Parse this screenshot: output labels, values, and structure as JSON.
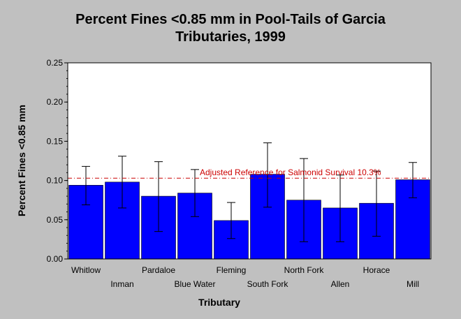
{
  "chart_data": {
    "type": "bar",
    "title_lines": [
      "Percent Fines <0.85 mm in Pool-Tails of Garcia",
      "Tributaries, 1999"
    ],
    "xlabel": "Tributary",
    "ylabel": "Percent Fines <0.85 mm",
    "ylim": [
      0,
      0.25
    ],
    "yticks": [
      "0.00",
      "0.05",
      "0.10",
      "0.15",
      "0.20",
      "0.25"
    ],
    "categories": [
      "Whitlow",
      "Inman",
      "Pardaloe",
      "Blue Water",
      "Fleming",
      "South Fork",
      "North Fork",
      "Allen",
      "Horace",
      "Mill"
    ],
    "values": [
      0.094,
      0.098,
      0.08,
      0.084,
      0.049,
      0.108,
      0.075,
      0.065,
      0.071,
      0.101
    ],
    "error_low": [
      0.069,
      0.065,
      0.035,
      0.054,
      0.026,
      0.066,
      0.022,
      0.022,
      0.029,
      0.078
    ],
    "error_high": [
      0.118,
      0.131,
      0.124,
      0.114,
      0.072,
      0.148,
      0.128,
      0.107,
      0.112,
      0.123
    ],
    "reference_line": {
      "value": 0.103,
      "label": "Adjusted Reference for Salmonid Survival 10.3%"
    },
    "bar_color": "#0000ff",
    "reference_color": "#cc0000",
    "grid": false,
    "legend": "none"
  }
}
